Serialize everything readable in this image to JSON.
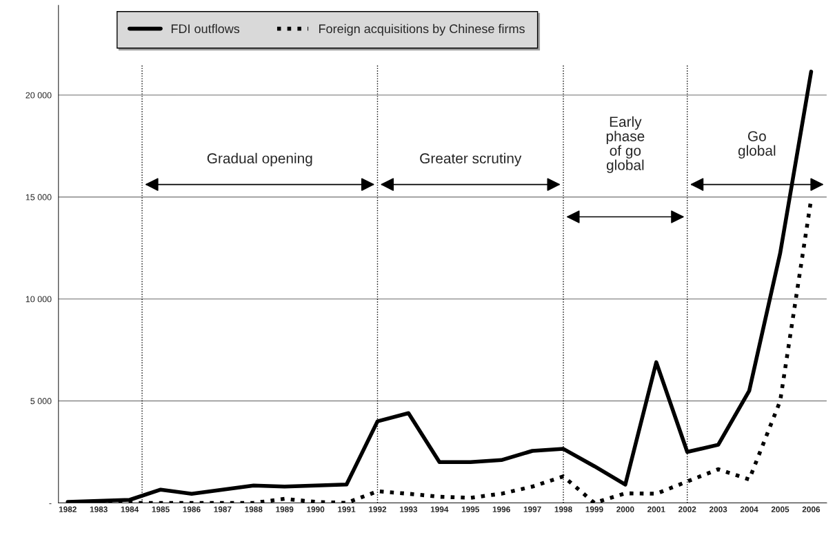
{
  "chart_data": {
    "type": "line",
    "x": [
      1982,
      1983,
      1984,
      1985,
      1986,
      1987,
      1988,
      1989,
      1990,
      1991,
      1992,
      1993,
      1994,
      1995,
      1996,
      1997,
      1998,
      1999,
      2000,
      2001,
      2002,
      2003,
      2004,
      2005,
      2006
    ],
    "series": [
      {
        "name": "FDI outflows",
        "color": "#000000",
        "line_style": "solid",
        "values": [
          50,
          100,
          150,
          650,
          450,
          650,
          850,
          800,
          850,
          900,
          4000,
          4400,
          2000,
          2000,
          2100,
          2550,
          2650,
          1800,
          900,
          6900,
          2500,
          2850,
          5500,
          12250,
          21150
        ]
      },
      {
        "name": "Foreign acquisitions by Chinese firms",
        "color": "#000000",
        "line_style": "dotted",
        "values": [
          0,
          0,
          0,
          0,
          0,
          0,
          0,
          200,
          50,
          0,
          570,
          450,
          300,
          250,
          450,
          800,
          1300,
          0,
          470,
          450,
          1050,
          1650,
          1150,
          5000,
          14900
        ]
      }
    ],
    "xlim": [
      1981.7,
      2006.5
    ],
    "xticks": [
      1982,
      1983,
      1984,
      1985,
      1986,
      1987,
      1988,
      1989,
      1990,
      1991,
      1992,
      1993,
      1994,
      1995,
      1996,
      1997,
      1998,
      1999,
      2000,
      2001,
      2002,
      2003,
      2004,
      2005,
      2006
    ],
    "ylim": [
      0,
      24400
    ],
    "yticks": [
      {
        "value": 0,
        "label": "-"
      },
      {
        "value": 5000,
        "label": "5 000"
      },
      {
        "value": 10000,
        "label": "10 000"
      },
      {
        "value": 15000,
        "label": "15 000"
      },
      {
        "value": 20000,
        "label": "20 000"
      }
    ],
    "grid": "y",
    "legend": "top",
    "ref_lines": [
      {
        "axis": "x",
        "value": 1984.4,
        "line_style": "dotted",
        "color": "#000000"
      },
      {
        "axis": "x",
        "value": 1992,
        "line_style": "dotted",
        "color": "#000000"
      },
      {
        "axis": "x",
        "value": 1998,
        "line_style": "dotted",
        "color": "#000000"
      },
      {
        "axis": "x",
        "value": 2002,
        "line_style": "dotted",
        "color": "#000000"
      }
    ],
    "annotations": [
      "Gradual opening",
      "Greater scrutiny",
      "Early\nphase\nof go\nglobal",
      "Go\nglobal"
    ]
  }
}
